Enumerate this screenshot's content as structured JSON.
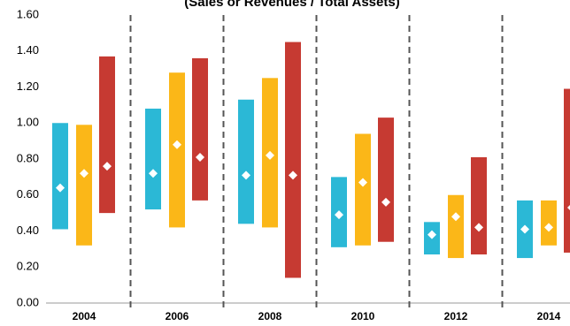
{
  "chart_data": {
    "type": "range-bar",
    "title": "(Sales or Revenues / Total Assets)",
    "categories": [
      "2004",
      "2006",
      "2008",
      "2010",
      "2012",
      "2014"
    ],
    "series": [
      {
        "color": "#2bb8d6",
        "low": [
          0.41,
          0.52,
          0.44,
          0.31,
          0.27,
          0.25
        ],
        "high": [
          1.0,
          1.08,
          1.13,
          0.7,
          0.45,
          0.57
        ],
        "values": [
          0.64,
          0.72,
          0.71,
          0.49,
          0.38,
          0.41
        ]
      },
      {
        "color": "#fbb718",
        "low": [
          0.32,
          0.42,
          0.42,
          0.32,
          0.25,
          0.32
        ],
        "high": [
          0.99,
          1.28,
          1.25,
          0.94,
          0.6,
          0.57
        ],
        "values": [
          0.72,
          0.88,
          0.82,
          0.67,
          0.48,
          0.42
        ]
      },
      {
        "color": "#c63a32",
        "low": [
          0.5,
          0.57,
          0.14,
          0.34,
          0.27,
          0.28
        ],
        "high": [
          1.37,
          1.36,
          1.45,
          1.03,
          0.81,
          1.19
        ],
        "values": [
          0.76,
          0.81,
          0.71,
          0.56,
          0.42,
          0.53
        ]
      }
    ],
    "ylim": [
      0,
      1.6
    ],
    "yticks": [
      {
        "value": 0,
        "label": "0.00"
      },
      {
        "value": 0.2,
        "label": "0.20"
      },
      {
        "value": 0.4,
        "label": "0.40"
      },
      {
        "value": 0.6,
        "label": "0.60"
      },
      {
        "value": 0.8,
        "label": "0.80"
      },
      {
        "value": 1,
        "label": "1.00"
      },
      {
        "value": 1.2,
        "label": "1.20"
      },
      {
        "value": 1.4,
        "label": "1.40"
      },
      {
        "value": 1.6,
        "label": "1.60"
      }
    ]
  }
}
